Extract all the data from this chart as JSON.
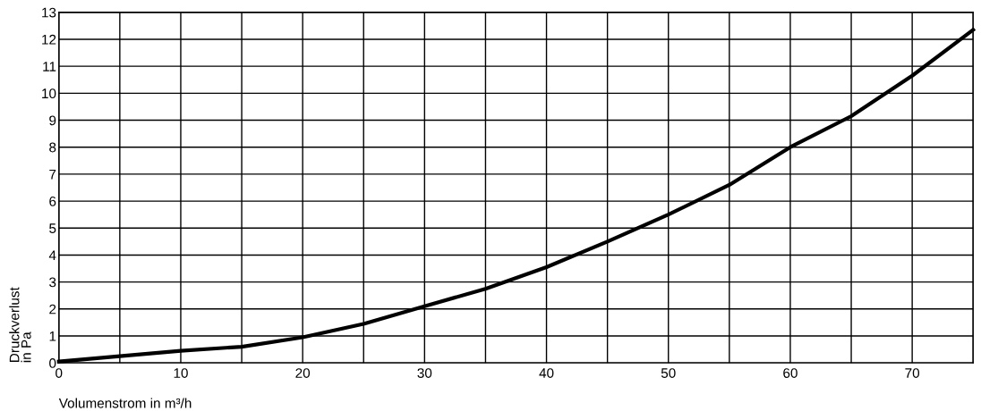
{
  "chart_data": {
    "type": "line",
    "xlabel": "Volumenstrom in m³/h",
    "ylabel": "Druckverlust\nin Pa",
    "x": [
      0,
      5,
      10,
      15,
      20,
      25,
      30,
      35,
      40,
      45,
      50,
      55,
      60,
      65,
      70,
      75
    ],
    "series": [
      {
        "color": "#000000",
        "values": [
          0.05,
          0.25,
          0.45,
          0.6,
          0.95,
          1.45,
          2.1,
          2.75,
          3.55,
          4.5,
          5.5,
          6.6,
          8.0,
          9.15,
          10.65,
          12.35
        ]
      }
    ],
    "xlim": [
      0,
      75
    ],
    "ylim": [
      0,
      13
    ],
    "xticks": [
      0,
      {
        "value": 5,
        "label": null
      },
      10,
      {
        "value": 15,
        "label": null
      },
      20,
      {
        "value": 25,
        "label": null
      },
      30,
      {
        "value": 35,
        "label": null
      },
      40,
      {
        "value": 45,
        "label": null
      },
      50,
      {
        "value": 55,
        "label": null
      },
      60,
      {
        "value": 65,
        "label": null
      },
      70,
      {
        "value": 75,
        "label": null
      }
    ],
    "yticks": [
      0,
      1,
      2,
      3,
      4,
      5,
      6,
      7,
      8,
      9,
      10,
      11,
      12,
      13
    ],
    "grid": true,
    "legend": false,
    "marker": "none",
    "line_style": "solid"
  }
}
